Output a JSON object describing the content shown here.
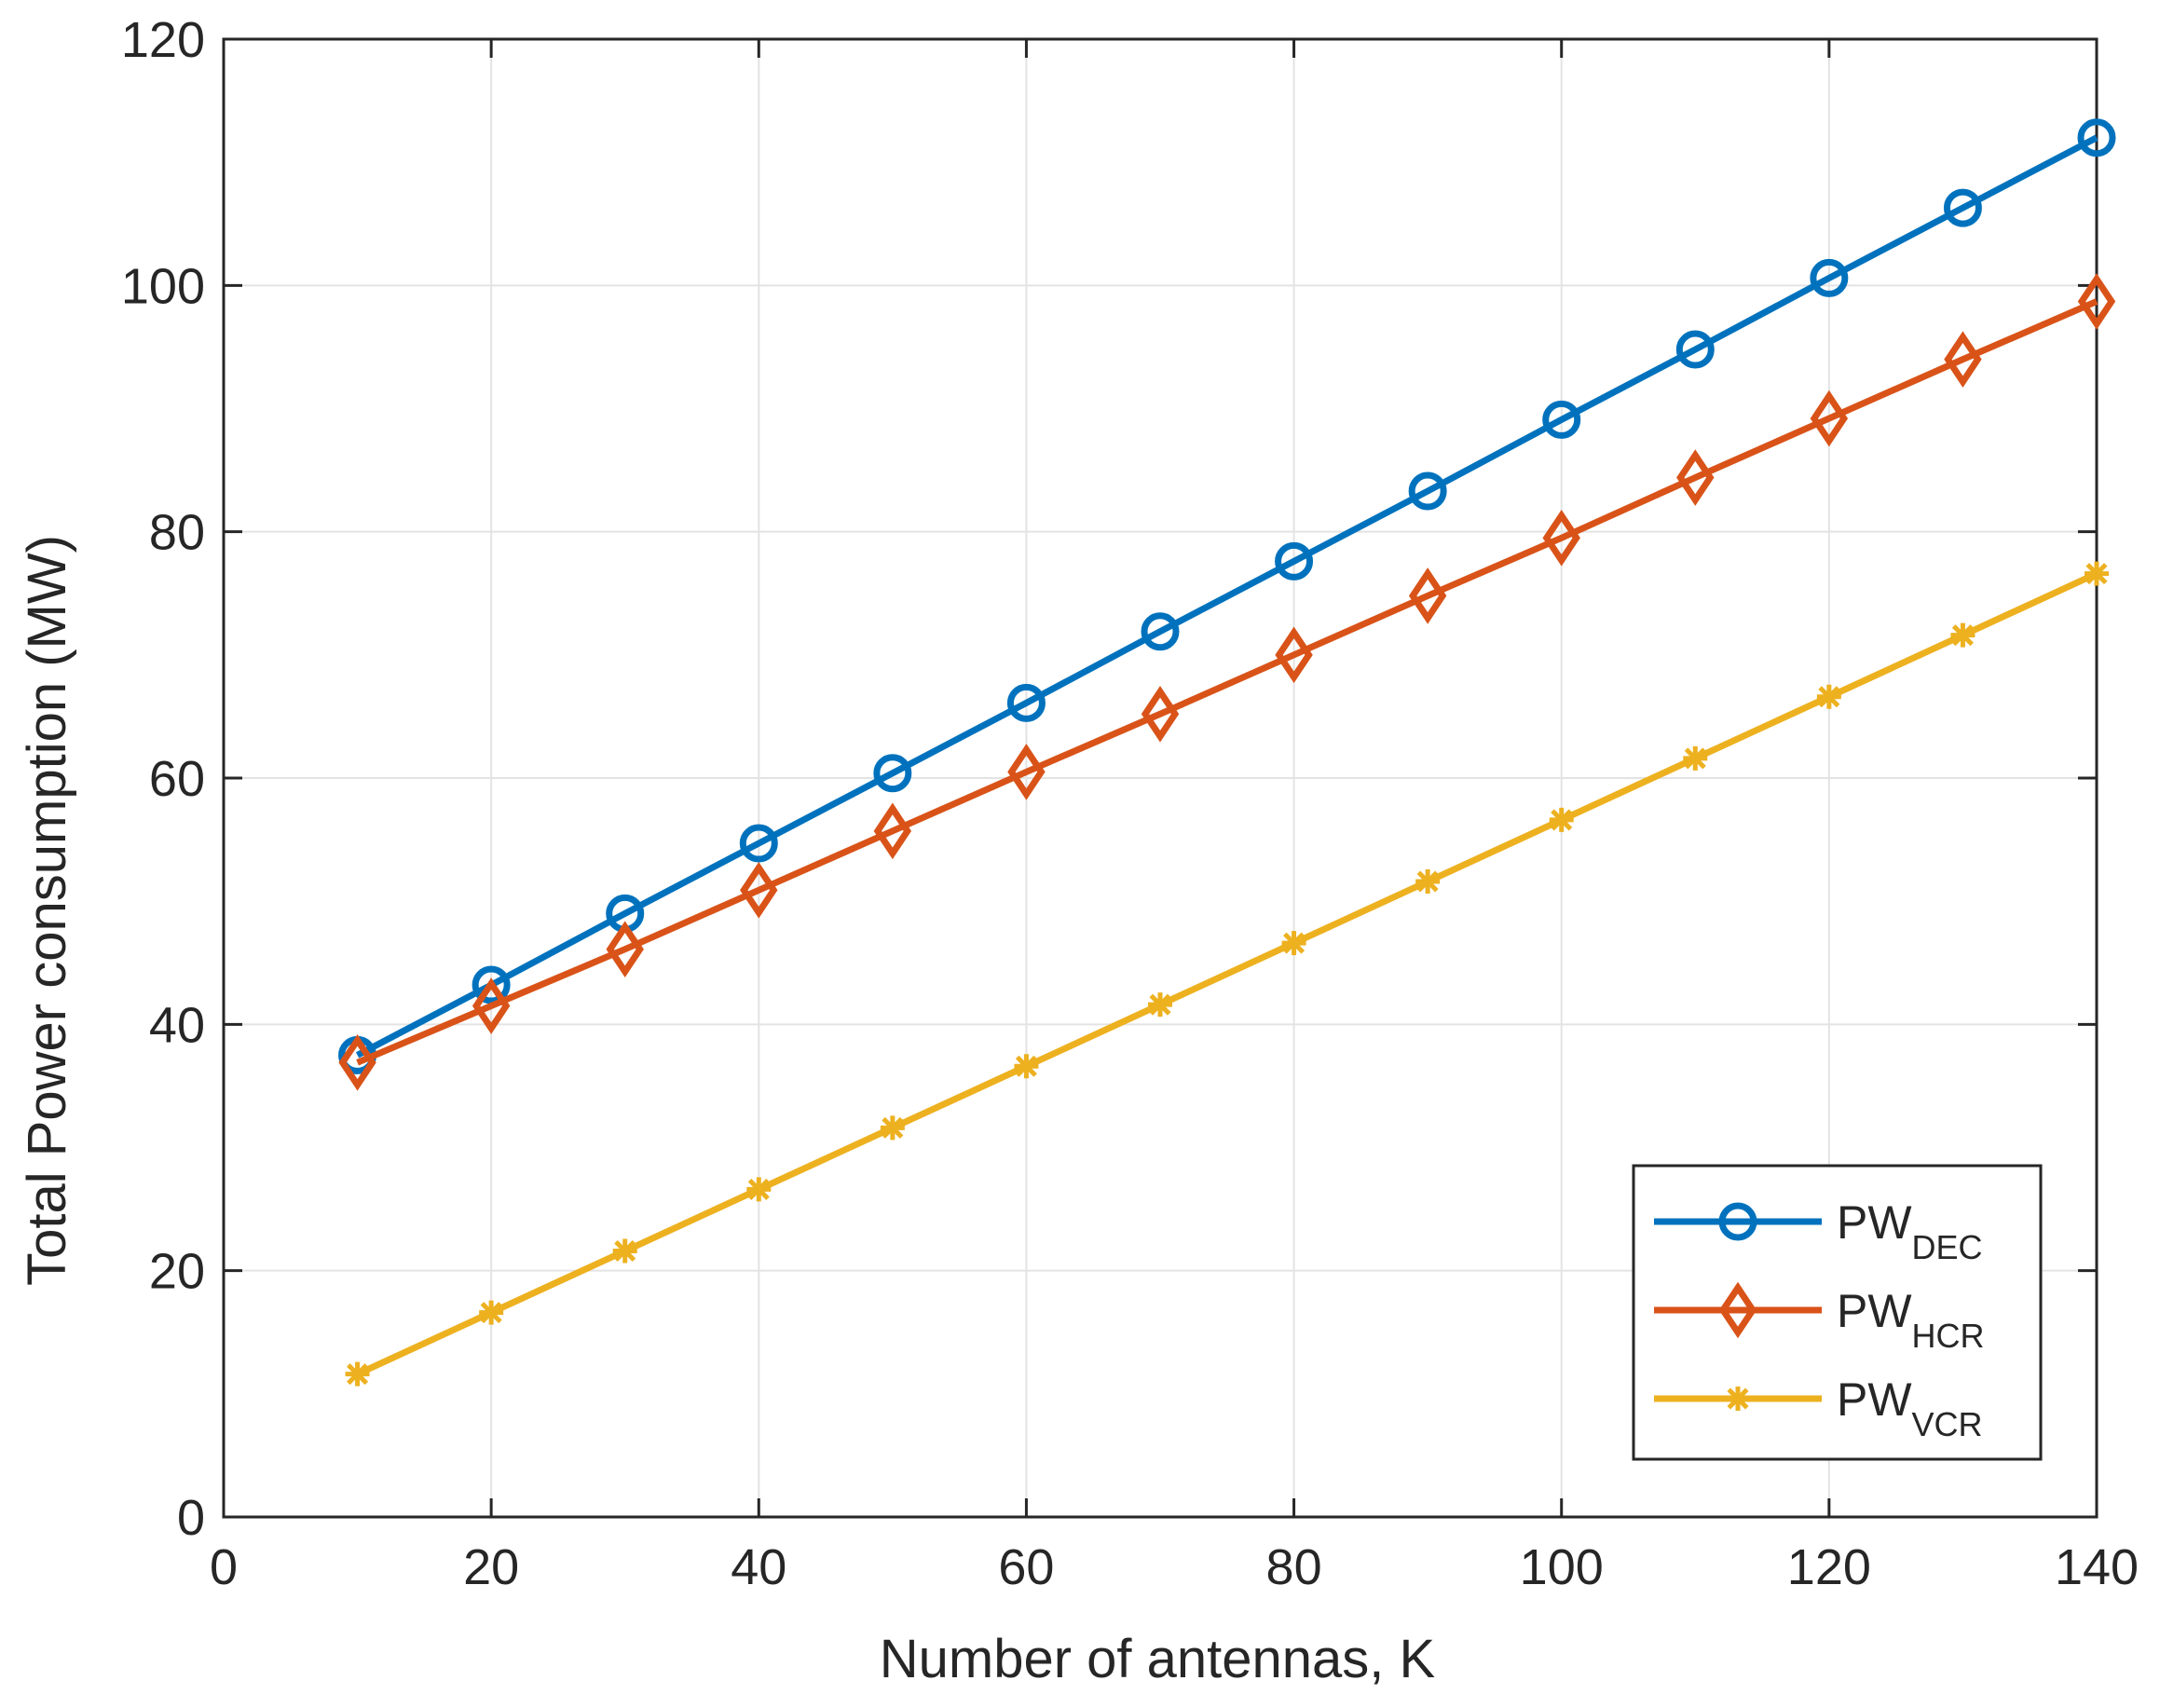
{
  "chart_data": {
    "type": "line",
    "title": "",
    "xlabel": "Number of antennas, K",
    "ylabel": "Total Power consumption (MW)",
    "xlim": [
      0,
      140
    ],
    "ylim": [
      0,
      120
    ],
    "xticks": [
      0,
      20,
      40,
      60,
      80,
      100,
      120,
      140
    ],
    "yticks": [
      0,
      20,
      40,
      60,
      80,
      100,
      120
    ],
    "grid": true,
    "legend_position": "bottom-right",
    "x": [
      10,
      20,
      30,
      40,
      50,
      60,
      70,
      80,
      90,
      100,
      110,
      120,
      130,
      140
    ],
    "series": [
      {
        "name": "PW_DEC",
        "label_main": "PW",
        "label_sub": "DEC",
        "color": "#0072BD",
        "marker": "circle",
        "values": [
          37.5,
          43.2,
          49.0,
          54.7,
          60.4,
          66.1,
          71.9,
          77.6,
          83.3,
          89.1,
          94.8,
          100.6,
          106.3,
          112.0
        ]
      },
      {
        "name": "PW_HCR",
        "label_main": "PW",
        "label_sub": "HCR",
        "color": "#D95319",
        "marker": "diamond",
        "values": [
          36.9,
          41.5,
          46.1,
          50.9,
          55.7,
          60.5,
          65.2,
          70.0,
          74.8,
          79.5,
          84.4,
          89.2,
          94.0,
          98.7
        ]
      },
      {
        "name": "PW_VCR",
        "label_main": "PW",
        "label_sub": "VCR",
        "color": "#EDB120",
        "marker": "star",
        "values": [
          11.6,
          16.6,
          21.6,
          26.6,
          31.6,
          36.6,
          41.6,
          46.6,
          51.6,
          56.6,
          61.6,
          66.6,
          71.6,
          76.6
        ]
      }
    ]
  }
}
